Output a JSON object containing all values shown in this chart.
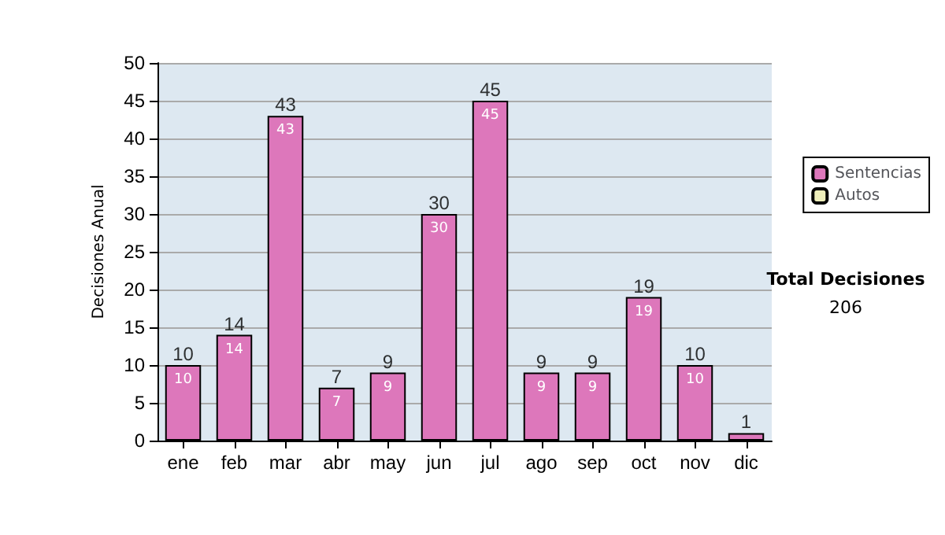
{
  "chart_data": {
    "type": "bar",
    "ylabel": "Decisiones Anual",
    "categories": [
      "ene",
      "feb",
      "mar",
      "abr",
      "may",
      "jun",
      "jul",
      "ago",
      "sep",
      "oct",
      "nov",
      "dic"
    ],
    "series": [
      {
        "name": "Sentencias",
        "color": "#dd77bb",
        "values": [
          10,
          14,
          43,
          7,
          9,
          30,
          45,
          9,
          9,
          19,
          10,
          1
        ],
        "value_labels": [
          "10",
          "14",
          "43",
          "7",
          "9",
          "30",
          "45",
          "9",
          "9",
          "19",
          "10",
          null
        ]
      },
      {
        "name": "Autos",
        "color": "#eeeebb",
        "values": [
          null,
          null,
          null,
          null,
          null,
          null,
          null,
          null,
          null,
          null,
          null,
          null
        ]
      }
    ],
    "stacked": true,
    "totals": [
      "10",
      "14",
      "43",
      "7",
      "9",
      "30",
      "45",
      "9",
      "9",
      "19",
      "10",
      "1"
    ],
    "ylim": [
      0,
      50
    ],
    "yticks": [
      0,
      5,
      10,
      15,
      20,
      25,
      30,
      35,
      40,
      45,
      50
    ],
    "grid": "y",
    "legend": "right",
    "annotations": [
      "Total Decisiones",
      "206"
    ]
  }
}
